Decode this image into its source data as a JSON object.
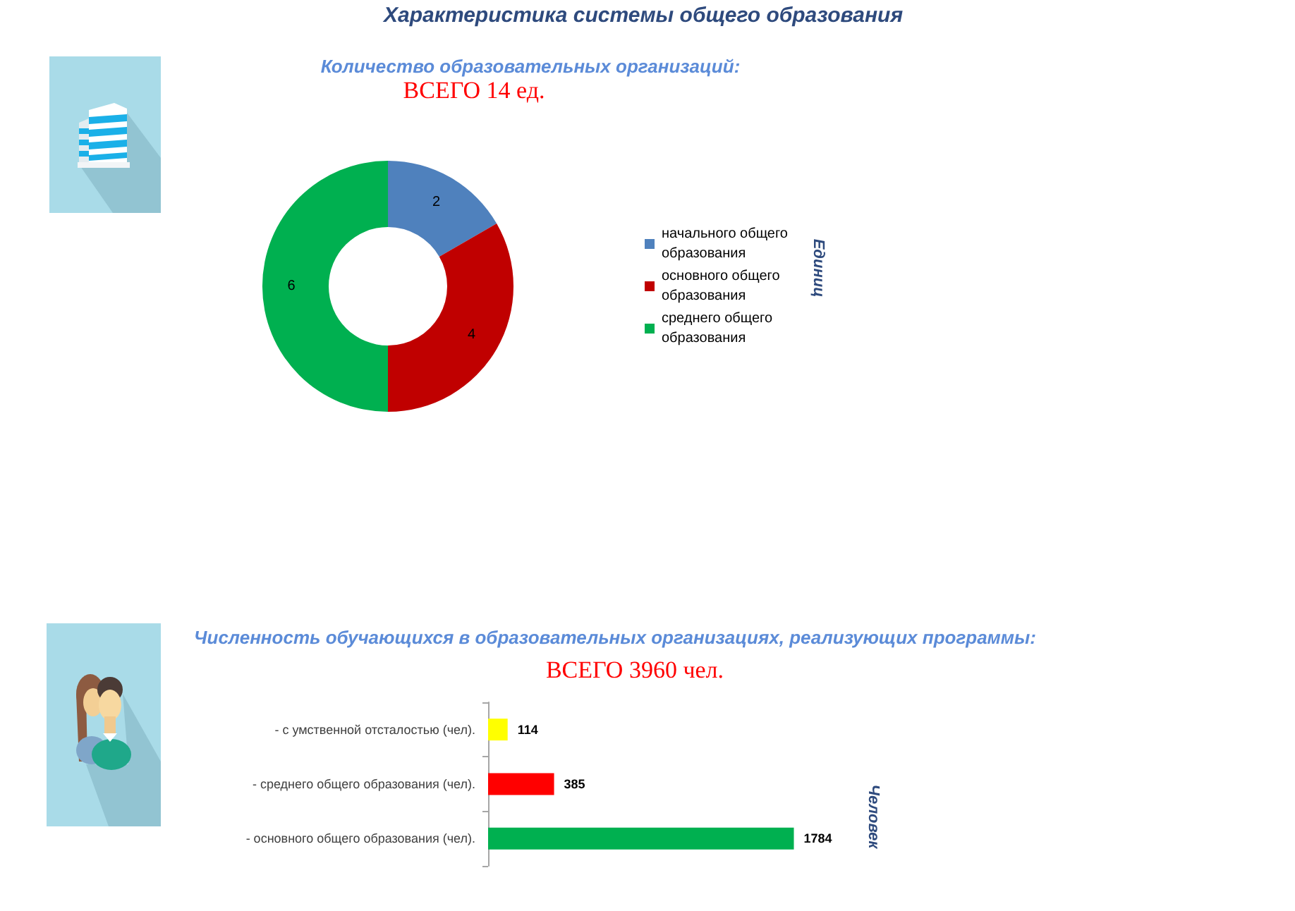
{
  "chart_data": [
    {
      "type": "donut",
      "title": "Количество образовательных организаций:",
      "subtitle": "ВСЕГО 14 ед.",
      "categories": [
        "начального общего образования",
        "основного общего образования",
        "среднего общего образования"
      ],
      "values": [
        2,
        4,
        6
      ],
      "colors": [
        "#4f81bd",
        "#c00000",
        "#00b050"
      ],
      "legend": "right",
      "data_labels": true,
      "annotations": [
        "Характеристика системы общего образования",
        "Единиц"
      ]
    },
    {
      "type": "bar",
      "orientation": "horizontal",
      "title": "Численность обучающихся в образовательных организациях, реализующих программы:",
      "subtitle": "ВСЕГО 3960 чел.",
      "categories": [
        "- с умственной отсталостью (чел).",
        "- среднего общего образования (чел).",
        "- основного общего образования (чел)."
      ],
      "values": [
        114,
        385,
        1784
      ],
      "colors": [
        "#ffff00",
        "#ff0000",
        "#00b050"
      ],
      "data_labels": true,
      "tick_labels": "y",
      "annotations": [
        "Человек"
      ]
    }
  ]
}
